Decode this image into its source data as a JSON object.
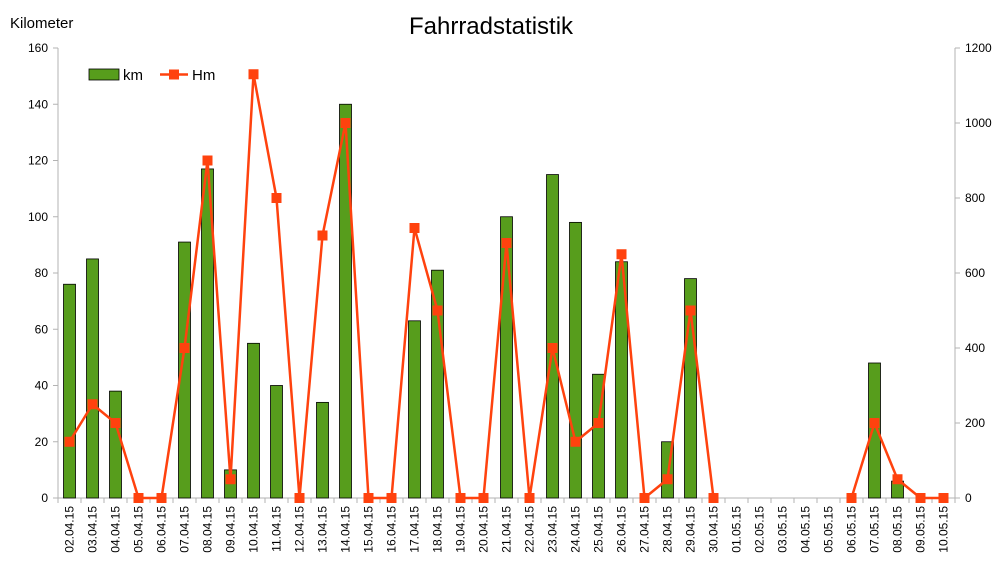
{
  "chart_data": {
    "type": "bar",
    "title": "Fahrradstatistik",
    "ylabel": "Kilometer",
    "xlabel": "",
    "categories": [
      "02.04.15",
      "03.04.15",
      "04.04.15",
      "05.04.15",
      "06.04.15",
      "07.04.15",
      "08.04.15",
      "09.04.15",
      "10.04.15",
      "11.04.15",
      "12.04.15",
      "13.04.15",
      "14.04.15",
      "15.04.15",
      "16.04.15",
      "17.04.15",
      "18.04.15",
      "19.04.15",
      "20.04.15",
      "21.04.15",
      "22.04.15",
      "23.04.15",
      "24.04.15",
      "25.04.15",
      "26.04.15",
      "27.04.15",
      "28.04.15",
      "29.04.15",
      "30.04.15",
      "01.05.15",
      "02.05.15",
      "03.05.15",
      "04.05.15",
      "05.05.15",
      "06.05.15",
      "07.05.15",
      "08.05.15",
      "09.05.15",
      "10.05.15"
    ],
    "series": [
      {
        "name": "km",
        "type": "bar",
        "axis": "left",
        "color": "#579d1c",
        "values": [
          76,
          85,
          38,
          0,
          0,
          91,
          117,
          10,
          55,
          40,
          0,
          34,
          140,
          0,
          0,
          63,
          81,
          0,
          0,
          100,
          0,
          115,
          98,
          44,
          84,
          0,
          20,
          78,
          0,
          0,
          0,
          0,
          0,
          0,
          0,
          48,
          6,
          0,
          0
        ]
      },
      {
        "name": "Hm",
        "type": "line",
        "axis": "right",
        "color": "#ff420e",
        "values": [
          150,
          250,
          200,
          0,
          0,
          400,
          900,
          50,
          1130,
          800,
          0,
          700,
          1000,
          0,
          0,
          720,
          500,
          0,
          0,
          680,
          0,
          400,
          150,
          200,
          650,
          0,
          50,
          500,
          0,
          null,
          null,
          null,
          null,
          null,
          0,
          200,
          50,
          0,
          0
        ]
      }
    ],
    "ylim": [
      0,
      160
    ],
    "y2lim": [
      0,
      1200
    ],
    "yticks": [
      0,
      20,
      40,
      60,
      80,
      100,
      120,
      140,
      160
    ],
    "y2ticks": [
      0,
      200,
      400,
      600,
      800,
      1000,
      1200
    ],
    "legend": "top-left",
    "grid": false
  }
}
